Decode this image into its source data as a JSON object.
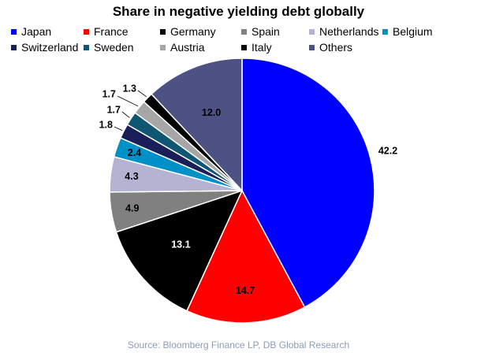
{
  "chart_data": {
    "type": "pie",
    "title": "Share in negative yielding debt globally",
    "source": "Source: Bloomberg Finance LP, DB Global Research",
    "legend_placement": "top",
    "slices": [
      {
        "label": "Japan",
        "value": 42.2,
        "value_label": "42.2",
        "color": "#0000ff",
        "label_color": "#000000"
      },
      {
        "label": "France",
        "value": 14.7,
        "value_label": "14.7",
        "color": "#ff0000",
        "label_color": "#000000"
      },
      {
        "label": "Germany",
        "value": 13.1,
        "value_label": "13.1",
        "color": "#000000",
        "label_color": "#ffffff"
      },
      {
        "label": "Spain",
        "value": 4.9,
        "value_label": "4.9",
        "color": "#808080",
        "label_color": "#000000"
      },
      {
        "label": "Netherlands",
        "value": 4.3,
        "value_label": "4.3",
        "color": "#b4b4d2",
        "label_color": "#000000"
      },
      {
        "label": "Belgium",
        "value": 2.4,
        "value_label": "2.4",
        "color": "#0090c8",
        "label_color": "#000000"
      },
      {
        "label": "Switzerland",
        "value": 1.8,
        "value_label": "1.8",
        "color": "#1a1f5a",
        "label_color": "#000000"
      },
      {
        "label": "Sweden",
        "value": 1.7,
        "value_label": "1.7",
        "color": "#0e5672",
        "label_color": "#000000"
      },
      {
        "label": "Austria",
        "value": 1.7,
        "value_label": "1.7",
        "color": "#a6a6a6",
        "label_color": "#000000"
      },
      {
        "label": "Italy",
        "value": 1.3,
        "value_label": "1.3",
        "color": "#000000",
        "label_color": "#000000"
      },
      {
        "label": "Others",
        "value": 12.0,
        "value_label": "12.0",
        "color": "#4d5283",
        "label_color": "#000000"
      }
    ]
  }
}
